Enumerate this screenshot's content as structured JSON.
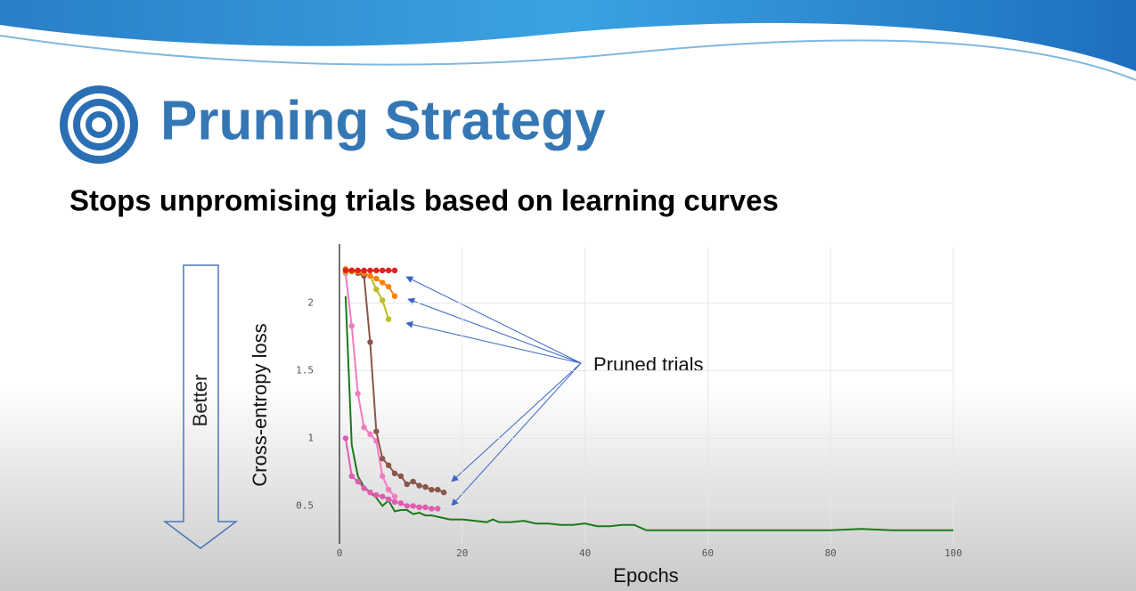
{
  "chart_data": {
    "type": "line",
    "title": "Pruning Strategy",
    "subtitle": "Stops unpromising trials based on learning curves",
    "annotations": [
      "Better",
      "Pruned trials"
    ],
    "xlabel": "Epochs",
    "ylabel": "Cross-entropy loss",
    "xlim": [
      0,
      100
    ],
    "ylim": [
      0.22,
      2.41
    ],
    "xticks": [
      0,
      20,
      40,
      60,
      80,
      100
    ],
    "yticks": [
      0.5,
      1,
      1.5,
      2
    ],
    "grid": true,
    "series": [
      {
        "color": "#1a7a1a",
        "markers": false,
        "x": [
          1,
          2,
          3,
          4,
          5,
          6,
          7,
          8,
          9,
          10,
          11,
          12,
          13,
          14,
          15,
          16,
          18,
          20,
          22,
          24,
          25,
          26,
          28,
          30,
          32,
          34,
          36,
          38,
          40,
          42,
          44,
          46,
          48,
          50,
          55,
          60,
          65,
          70,
          75,
          80,
          85,
          90,
          95,
          100
        ],
        "values": [
          2.05,
          0.95,
          0.72,
          0.64,
          0.6,
          0.56,
          0.5,
          0.54,
          0.46,
          0.47,
          0.47,
          0.44,
          0.45,
          0.43,
          0.43,
          0.42,
          0.4,
          0.4,
          0.39,
          0.38,
          0.4,
          0.38,
          0.38,
          0.39,
          0.37,
          0.37,
          0.36,
          0.36,
          0.37,
          0.35,
          0.35,
          0.36,
          0.36,
          0.32,
          0.32,
          0.32,
          0.32,
          0.32,
          0.32,
          0.32,
          0.33,
          0.32,
          0.32,
          0.32
        ]
      },
      {
        "color": "#e05cb0",
        "markers": true,
        "x": [
          1,
          2,
          3,
          4,
          5,
          6,
          7,
          8,
          9,
          10,
          11,
          12,
          13,
          14,
          15,
          16
        ],
        "values": [
          1.0,
          0.72,
          0.68,
          0.63,
          0.6,
          0.58,
          0.57,
          0.55,
          0.53,
          0.52,
          0.5,
          0.5,
          0.49,
          0.49,
          0.48,
          0.48
        ]
      },
      {
        "color": "#f07cbf",
        "markers": true,
        "x": [
          1,
          2,
          3,
          4,
          5,
          6,
          7,
          8,
          9
        ],
        "values": [
          2.22,
          1.83,
          1.33,
          1.08,
          1.03,
          0.98,
          0.72,
          0.62,
          0.57
        ]
      },
      {
        "color": "#8c564b",
        "markers": true,
        "x": [
          1,
          2,
          3,
          4,
          5,
          6,
          7,
          8,
          9,
          10,
          11,
          12,
          13,
          14,
          15,
          16,
          17
        ],
        "values": [
          2.25,
          2.24,
          2.22,
          2.2,
          1.71,
          1.05,
          0.85,
          0.8,
          0.74,
          0.72,
          0.66,
          0.68,
          0.65,
          0.64,
          0.62,
          0.62,
          0.6
        ]
      },
      {
        "color": "#bcbd22",
        "markers": true,
        "x": [
          1,
          2,
          3,
          4,
          5,
          6,
          7,
          8
        ],
        "values": [
          2.23,
          2.23,
          2.23,
          2.22,
          2.2,
          2.1,
          2.02,
          1.88
        ]
      },
      {
        "color": "#ff7f0e",
        "markers": true,
        "x": [
          1,
          2,
          3,
          4,
          5,
          6,
          7,
          8,
          9
        ],
        "values": [
          2.25,
          2.24,
          2.23,
          2.22,
          2.2,
          2.18,
          2.15,
          2.12,
          2.05
        ]
      },
      {
        "color": "#e02020",
        "markers": true,
        "x": [
          1,
          2,
          3,
          4,
          5,
          6,
          7,
          8,
          9
        ],
        "values": [
          2.24,
          2.24,
          2.24,
          2.24,
          2.24,
          2.24,
          2.24,
          2.24,
          2.24
        ]
      }
    ]
  }
}
